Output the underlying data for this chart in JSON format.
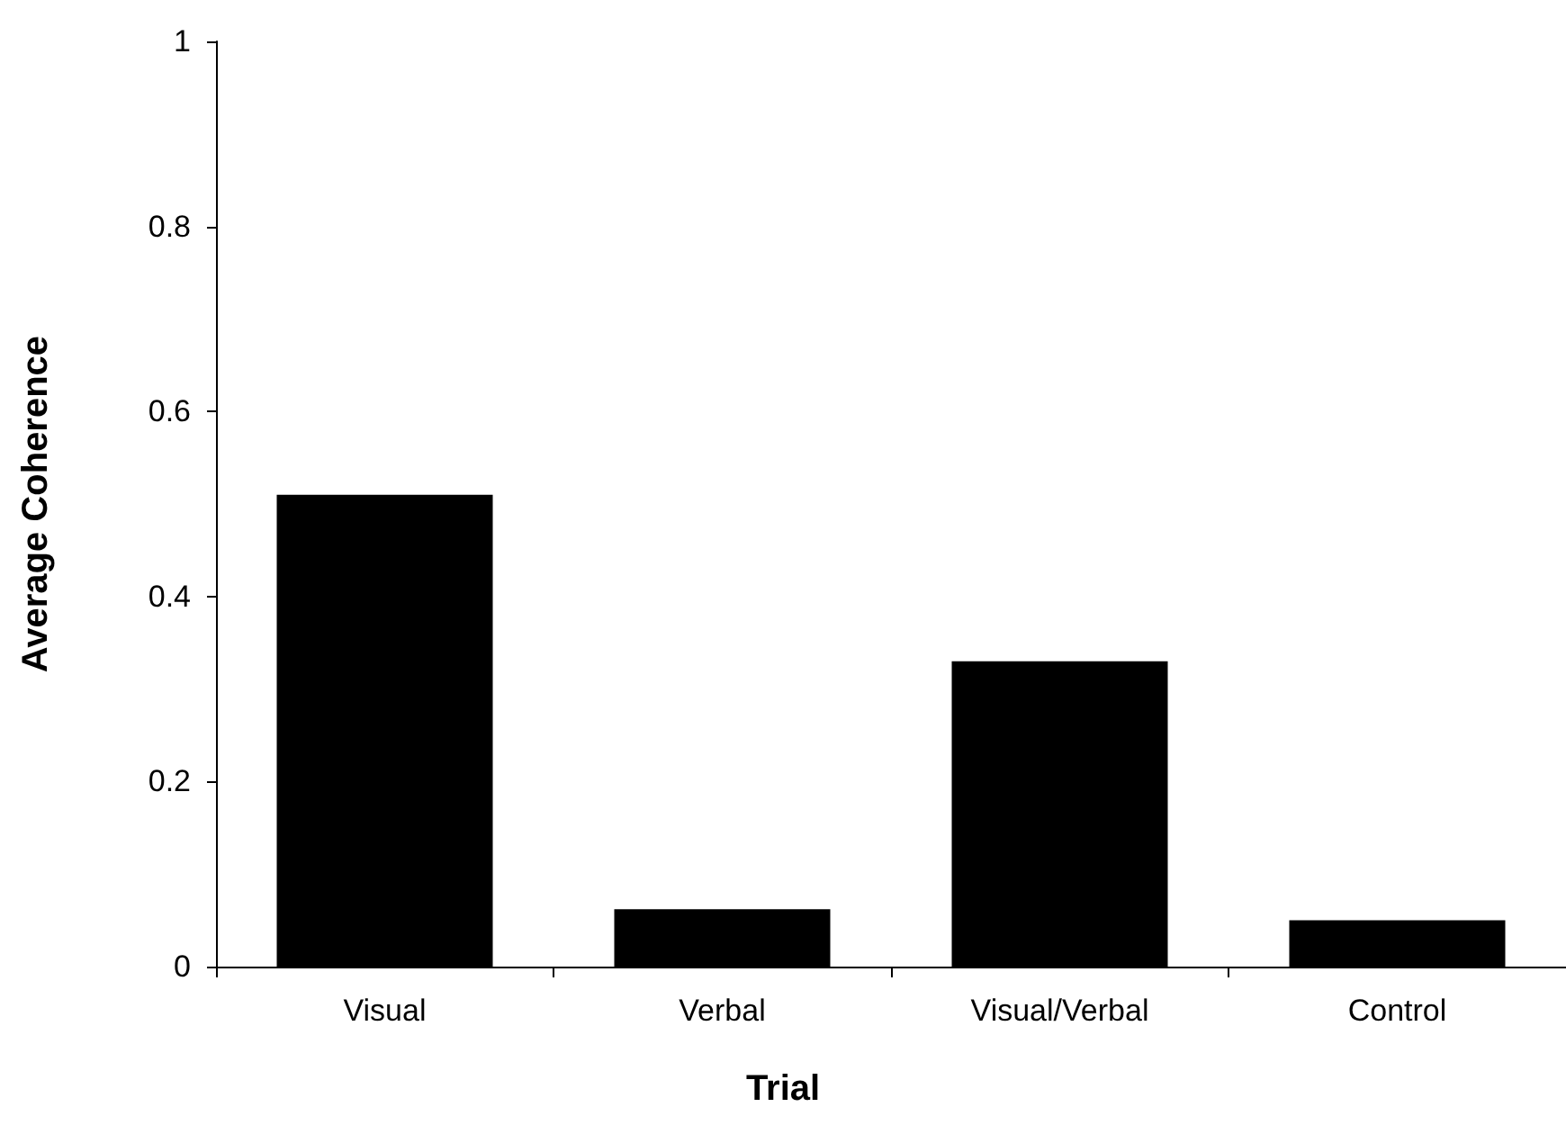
{
  "chart_data": {
    "type": "bar",
    "xlabel": "Trial",
    "ylabel": "Average Coherence",
    "categories": [
      "Visual",
      "Verbal",
      "Visual/Verbal",
      "Control"
    ],
    "values": [
      0.51,
      0.062,
      0.33,
      0.05
    ],
    "color": "#000000",
    "ylim": [
      0,
      1
    ],
    "yticks": [
      0,
      0.2,
      0.4,
      0.6,
      0.8,
      1
    ],
    "grid": false
  }
}
